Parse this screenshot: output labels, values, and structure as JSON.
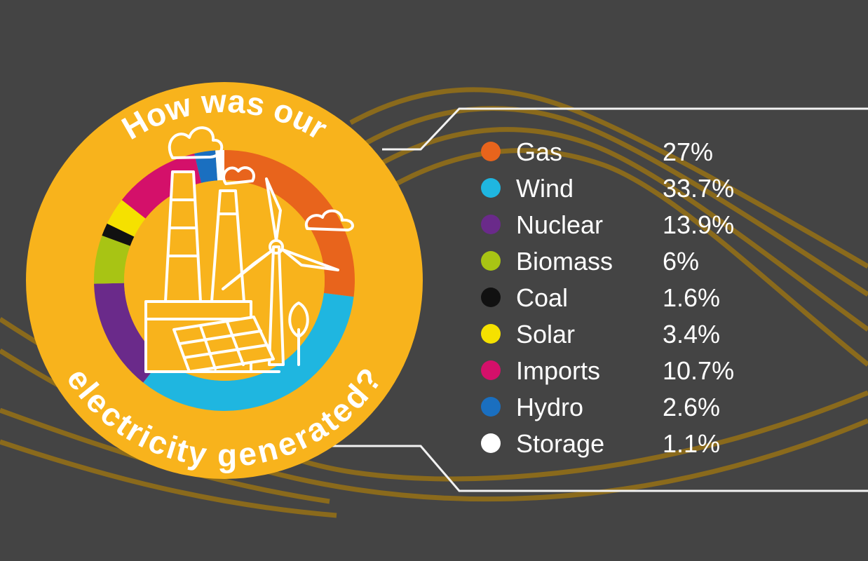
{
  "colors": {
    "background": "#444444",
    "badge": "#f8b31c",
    "curves": "#8a6a1c"
  },
  "chart_data": {
    "type": "pie",
    "title_line1": "How was our",
    "title_line2": "electricity generated?",
    "unit": "%",
    "categories": [
      "Gas",
      "Wind",
      "Nuclear",
      "Biomass",
      "Coal",
      "Solar",
      "Imports",
      "Hydro",
      "Storage"
    ],
    "values": [
      27,
      33.7,
      13.9,
      6,
      1.6,
      3.4,
      10.7,
      2.6,
      1.1
    ],
    "value_labels": [
      "27%",
      "33.7%",
      "13.9%",
      "6%",
      "1.6%",
      "3.4%",
      "10.7%",
      "2.6%",
      "1.1%"
    ],
    "colors": [
      "#e8641c",
      "#1fb6e0",
      "#6a2a8a",
      "#a8c414",
      "#111111",
      "#f5e100",
      "#d4106a",
      "#1a6fc0",
      "#ffffff"
    ],
    "legend_position": "right"
  }
}
